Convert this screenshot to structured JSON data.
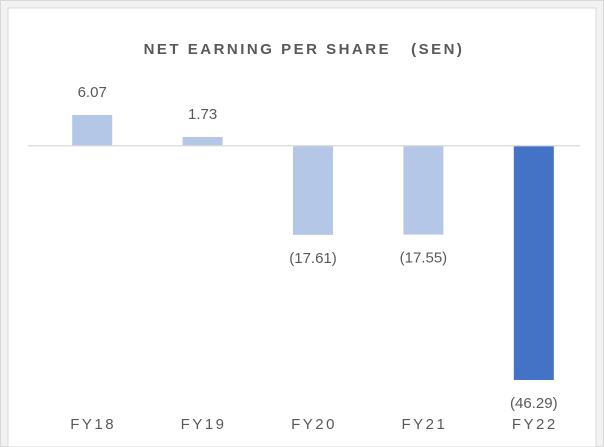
{
  "chart_data": {
    "type": "bar",
    "title": "NET EARNING PER SHARE   (SEN)",
    "categories": [
      "FY18",
      "FY19",
      "FY20",
      "FY21",
      "FY22"
    ],
    "values": [
      6.07,
      1.73,
      -17.61,
      -17.55,
      -46.29
    ],
    "value_labels": [
      "6.07",
      "1.73",
      "(17.61)",
      "(17.55)",
      "(46.29)"
    ],
    "colors": [
      "#b4c7e7",
      "#b4c7e7",
      "#b4c7e7",
      "#b4c7e7",
      "#4472c4"
    ]
  }
}
